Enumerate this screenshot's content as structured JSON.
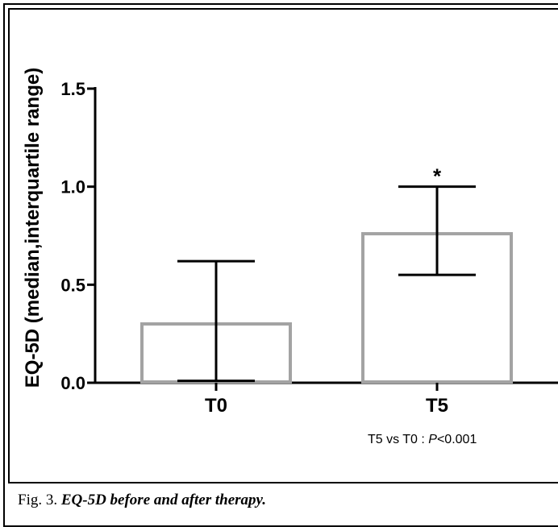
{
  "chart_data": {
    "type": "bar",
    "categories": [
      "T0",
      "T5"
    ],
    "values": [
      0.3,
      0.76
    ],
    "error_low": [
      0.01,
      0.55
    ],
    "error_high": [
      0.62,
      1.0
    ],
    "ylabel": "EQ-5D (median,interquartile range)",
    "xlabel": "",
    "ylim": [
      0,
      1.5
    ],
    "yticks": [
      "0.0",
      "0.5",
      "1.0",
      "1.5"
    ],
    "yticks_values": [
      0,
      0.5,
      1.0,
      1.5
    ],
    "annotations": [
      {
        "category": "T5",
        "text": "*"
      }
    ],
    "stat_note": {
      "prefix": "T5 vs T0 : ",
      "p_symbol": "P",
      "suffix": "<0.001"
    },
    "grid": false,
    "legend": "none",
    "bar_edge_color": "#a3a3a3",
    "bar_fill_color": "#ffffff",
    "error_color": "#000000"
  },
  "caption": {
    "label": "Fig. 3.",
    "title": "EQ-5D before and after therapy."
  }
}
